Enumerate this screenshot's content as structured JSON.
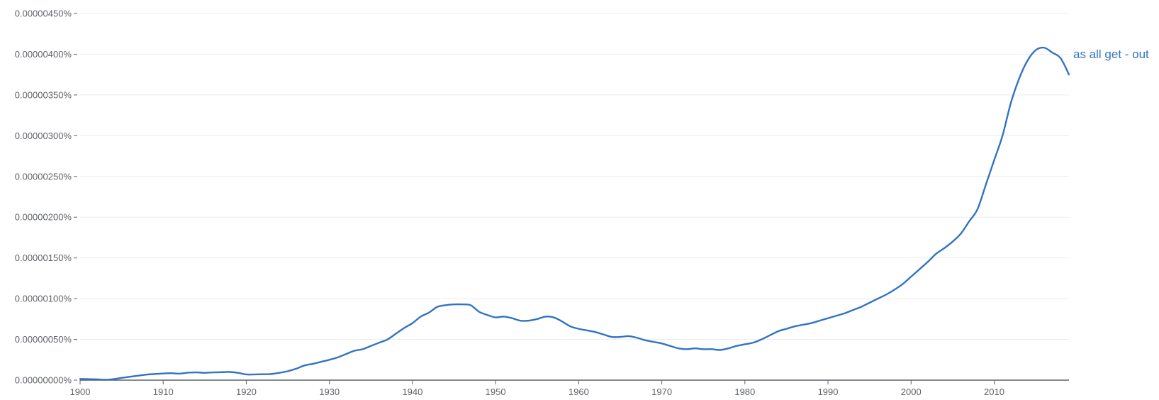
{
  "chart_data": {
    "type": "line",
    "title": "",
    "xlabel": "",
    "ylabel": "",
    "xlim": [
      1900,
      2019
    ],
    "ylim": [
      0,
      4.5e-06
    ],
    "grid": true,
    "legend": "inline at line end (right)",
    "x_ticks": [
      1900,
      1910,
      1920,
      1930,
      1940,
      1950,
      1960,
      1970,
      1980,
      1990,
      2000,
      2010
    ],
    "x_tick_labels": [
      "1900",
      "1910",
      "1920",
      "1930",
      "1940",
      "1950",
      "1960",
      "1970",
      "1980",
      "1990",
      "2000",
      "2010"
    ],
    "y_ticks": [
      0,
      5e-07,
      1e-06,
      1.5e-06,
      2e-06,
      2.5e-06,
      3e-06,
      3.5e-06,
      4e-06,
      4.5e-06
    ],
    "y_tick_labels": [
      "0.00000000%",
      "0.00000050%",
      "0.00000100%",
      "0.00000150%",
      "0.00000200%",
      "0.00000250%",
      "0.00000300%",
      "0.00000350%",
      "0.00000400%",
      "0.00000450%"
    ],
    "series": [
      {
        "name": "as all get - out",
        "color": "#3273c2",
        "x": [
          1900,
          1901,
          1902,
          1903,
          1904,
          1905,
          1906,
          1907,
          1908,
          1909,
          1910,
          1911,
          1912,
          1913,
          1914,
          1915,
          1916,
          1917,
          1918,
          1919,
          1920,
          1921,
          1922,
          1923,
          1924,
          1925,
          1926,
          1927,
          1928,
          1929,
          1930,
          1931,
          1932,
          1933,
          1934,
          1935,
          1936,
          1937,
          1938,
          1939,
          1940,
          1941,
          1942,
          1943,
          1944,
          1945,
          1946,
          1947,
          1948,
          1949,
          1950,
          1951,
          1952,
          1953,
          1954,
          1955,
          1956,
          1957,
          1958,
          1959,
          1960,
          1961,
          1962,
          1963,
          1964,
          1965,
          1966,
          1967,
          1968,
          1969,
          1970,
          1971,
          1972,
          1973,
          1974,
          1975,
          1976,
          1977,
          1978,
          1979,
          1980,
          1981,
          1982,
          1983,
          1984,
          1985,
          1986,
          1987,
          1988,
          1989,
          1990,
          1991,
          1992,
          1993,
          1994,
          1995,
          1996,
          1997,
          1998,
          1999,
          2000,
          2001,
          2002,
          2003,
          2004,
          2005,
          2006,
          2007,
          2008,
          2009,
          2010,
          2011,
          2012,
          2013,
          2014,
          2015,
          2016,
          2017,
          2018,
          2019
        ],
        "values": [
          1.5e-08,
          1.2e-08,
          1e-08,
          5e-09,
          1.2e-08,
          2.8e-08,
          4.2e-08,
          5.5e-08,
          6.8e-08,
          7.5e-08,
          8.2e-08,
          8.5e-08,
          8e-08,
          9.2e-08,
          9.5e-08,
          9e-08,
          9.5e-08,
          9.8e-08,
          1e-07,
          9e-08,
          7e-08,
          7e-08,
          7.2e-08,
          7.5e-08,
          9e-08,
          1.1e-07,
          1.4e-07,
          1.8e-07,
          2e-07,
          2.25e-07,
          2.5e-07,
          2.8e-07,
          3.2e-07,
          3.6e-07,
          3.8e-07,
          4.2e-07,
          4.6e-07,
          5e-07,
          5.7e-07,
          6.4e-07,
          7e-07,
          7.8e-07,
          8.3e-07,
          9e-07,
          9.2e-07,
          9.3e-07,
          9.3e-07,
          9.2e-07,
          8.4e-07,
          8e-07,
          7.7e-07,
          7.8e-07,
          7.6e-07,
          7.3e-07,
          7.3e-07,
          7.5e-07,
          7.8e-07,
          7.7e-07,
          7.2e-07,
          6.6e-07,
          6.3e-07,
          6.1e-07,
          5.9e-07,
          5.6e-07,
          5.3e-07,
          5.3e-07,
          5.4e-07,
          5.2e-07,
          4.9e-07,
          4.7e-07,
          4.5e-07,
          4.2e-07,
          3.9e-07,
          3.8e-07,
          3.9e-07,
          3.8e-07,
          3.8e-07,
          3.7e-07,
          3.9e-07,
          4.2e-07,
          4.4e-07,
          4.6e-07,
          5e-07,
          5.5e-07,
          6e-07,
          6.3e-07,
          6.6e-07,
          6.8e-07,
          7e-07,
          7.3e-07,
          7.6e-07,
          7.9e-07,
          8.2e-07,
          8.6e-07,
          9e-07,
          9.5e-07,
          1e-06,
          1.05e-06,
          1.11e-06,
          1.18e-06,
          1.27e-06,
          1.36e-06,
          1.45e-06,
          1.55e-06,
          1.62e-06,
          1.7e-06,
          1.8e-06,
          1.95e-06,
          2.1e-06,
          2.4e-06,
          2.7e-06,
          3e-06,
          3.4e-06,
          3.7e-06,
          3.92e-06,
          4.05e-06,
          4.08e-06,
          4.02e-06,
          3.95e-06,
          3.75e-06
        ]
      }
    ]
  }
}
